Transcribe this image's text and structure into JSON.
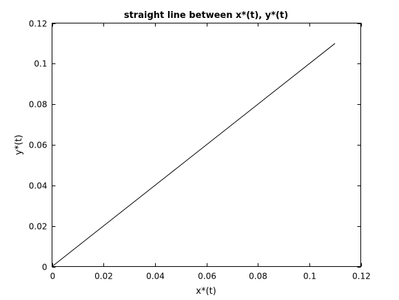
{
  "chart_data": {
    "type": "line",
    "title": "straight line between x*(t), y*(t)",
    "xlabel": "x*(t)",
    "ylabel": "y*(t)",
    "xlim": [
      0,
      0.12
    ],
    "ylim": [
      0,
      0.12
    ],
    "xticks": [
      0,
      0.02,
      0.04,
      0.06,
      0.08,
      0.1,
      0.12
    ],
    "yticks": [
      0,
      0.02,
      0.04,
      0.06,
      0.08,
      0.1,
      0.12
    ],
    "xtick_labels": [
      "0",
      "0.02",
      "0.04",
      "0.06",
      "0.08",
      "0.1",
      "0.12"
    ],
    "ytick_labels": [
      "0",
      "0.02",
      "0.04",
      "0.06",
      "0.08",
      "0.1",
      "0.12"
    ],
    "grid": false,
    "series": [
      {
        "x": [
          0,
          0.11
        ],
        "y": [
          0,
          0.11
        ],
        "color": "#000000"
      }
    ]
  }
}
